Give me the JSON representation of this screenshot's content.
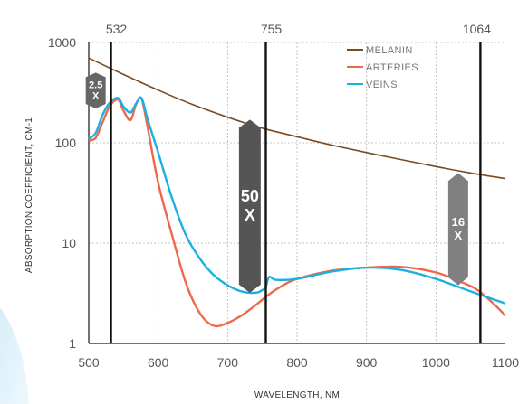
{
  "chart_data": {
    "type": "line",
    "xlabel": "WAVELENGTH, NM",
    "ylabel": "ABSORPTION COEFFICIENT, CM-1",
    "xlim": [
      500,
      1100
    ],
    "ylim": [
      1,
      1000
    ],
    "yscale": "log",
    "grid": true,
    "legend_position": "top-right",
    "x_ticks": [
      "500",
      "600",
      "700",
      "800",
      "900",
      "1000",
      "1100"
    ],
    "y_ticks": [
      "1",
      "10",
      "100",
      "1000"
    ],
    "wavelength_markers": [
      {
        "label": "532",
        "x": 532
      },
      {
        "label": "755",
        "x": 755
      },
      {
        "label": "1064",
        "x": 1064
      }
    ],
    "series": [
      {
        "name": "MELANIN",
        "color": "#7a4a22",
        "x": [
          500,
          550,
          600,
          650,
          700,
          750,
          800,
          850,
          900,
          950,
          1000,
          1050,
          1100
        ],
        "y": [
          700,
          480,
          335,
          240,
          180,
          140,
          115,
          95,
          80,
          68,
          58,
          50,
          44
        ]
      },
      {
        "name": "ARTERIES",
        "color": "#f0684a",
        "x": [
          500,
          510,
          520,
          530,
          542,
          550,
          560,
          568,
          576,
          585,
          600,
          620,
          640,
          660,
          680,
          700,
          720,
          740,
          760,
          780,
          800,
          850,
          900,
          950,
          1000,
          1040,
          1060,
          1080,
          1100
        ],
        "y": [
          105,
          112,
          160,
          230,
          270,
          210,
          168,
          240,
          275,
          140,
          40,
          12,
          4,
          2,
          1.5,
          1.6,
          1.9,
          2.4,
          3.1,
          3.8,
          4.4,
          5.3,
          5.7,
          5.8,
          5.1,
          4.0,
          3.4,
          2.6,
          1.9
        ]
      },
      {
        "name": "VEINS",
        "color": "#1ab0e0",
        "x": [
          500,
          510,
          520,
          530,
          542,
          550,
          560,
          568,
          576,
          585,
          600,
          620,
          640,
          660,
          680,
          700,
          720,
          740,
          750,
          755,
          760,
          770,
          800,
          850,
          900,
          950,
          1000,
          1050,
          1100
        ],
        "y": [
          110,
          125,
          190,
          250,
          280,
          230,
          200,
          245,
          280,
          170,
          80,
          28,
          12,
          7,
          4.8,
          3.8,
          3.3,
          3.2,
          3.4,
          3.7,
          4.6,
          4.3,
          4.4,
          5.2,
          5.7,
          5.4,
          4.4,
          3.3,
          2.5
        ]
      }
    ],
    "annotations": [
      {
        "label_top": "2.5",
        "label_bottom": "X",
        "x": 510,
        "y_top": 500,
        "y_bottom": 220
      },
      {
        "label_top": "50",
        "label_bottom": "X",
        "x": 732,
        "y_top": 170,
        "y_bottom": 3.2
      },
      {
        "label_top": "16",
        "label_bottom": "X",
        "x": 1032,
        "y_top": 50,
        "y_bottom": 3.8
      }
    ]
  }
}
